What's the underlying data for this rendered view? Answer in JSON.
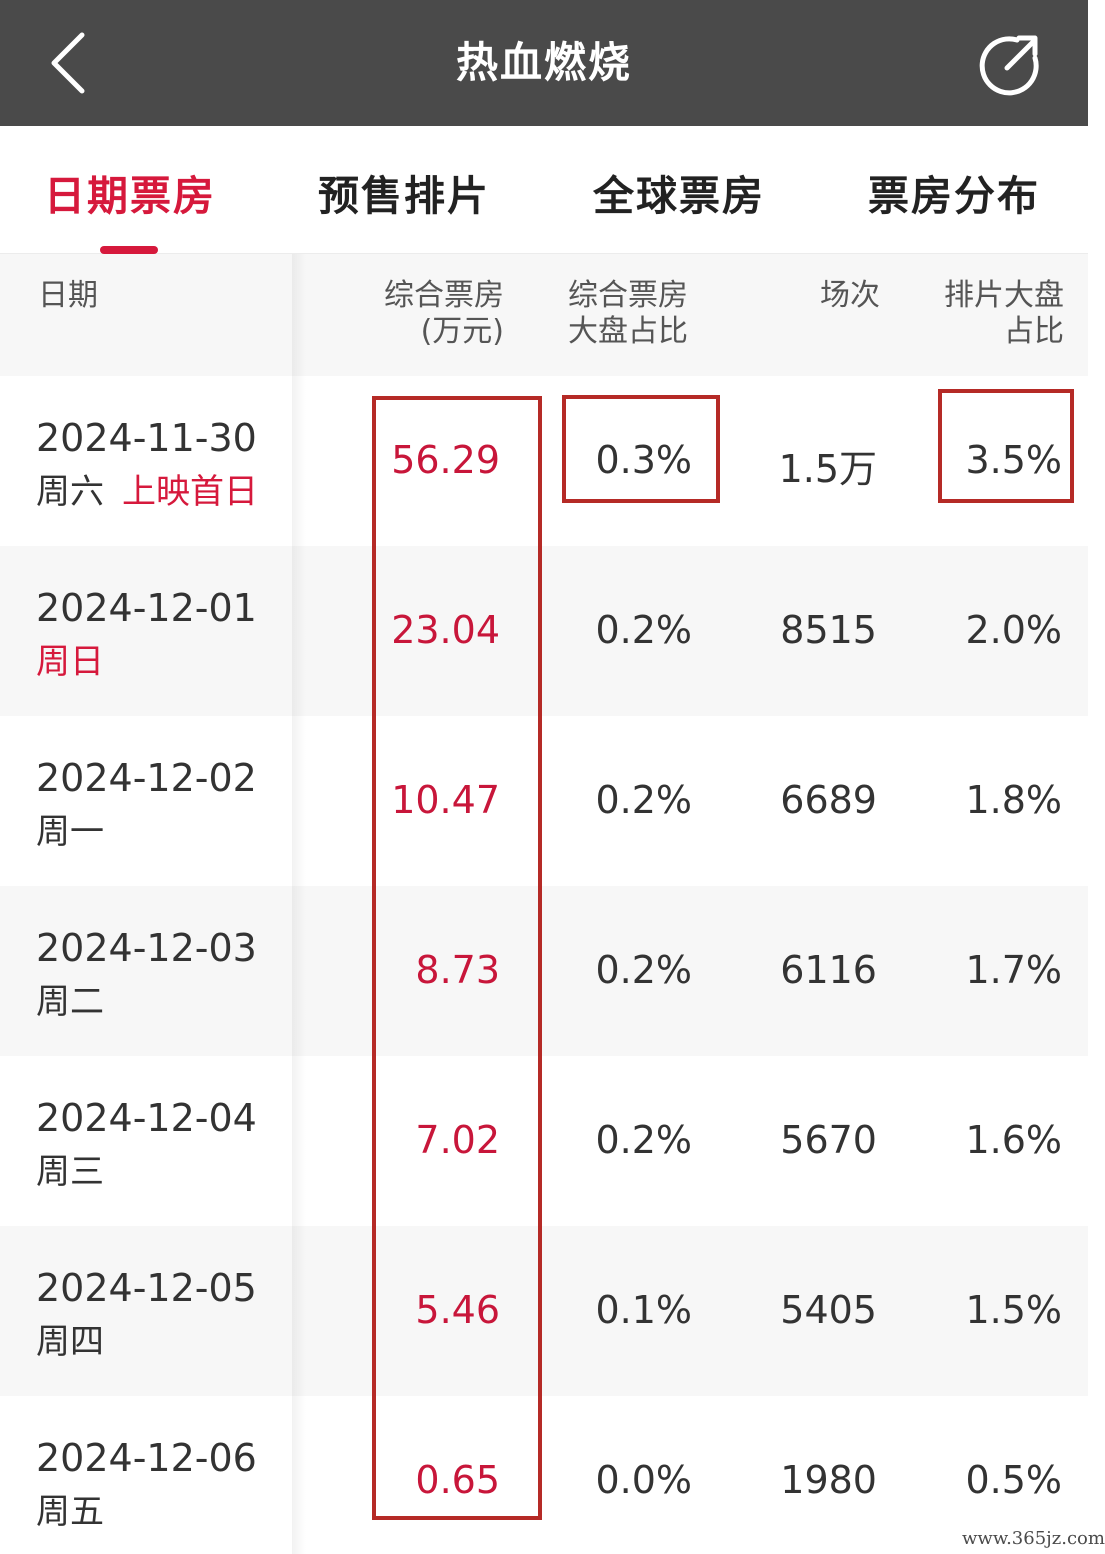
{
  "header": {
    "title": "热血燃烧",
    "back_icon": "chevron-left-icon",
    "share_icon": "share-icon"
  },
  "tabs": [
    {
      "label": "日期票房",
      "active": true
    },
    {
      "label": "预售排片",
      "active": false
    },
    {
      "label": "全球票房",
      "active": false
    },
    {
      "label": "票房分布",
      "active": false
    }
  ],
  "table": {
    "columns": {
      "date": "日期",
      "box_office_1": "综合票房",
      "box_office_2": "(万元)",
      "share_1": "综合票房",
      "share_2": "大盘占比",
      "shows": "场次",
      "sched_1": "排片大盘",
      "sched_2": "占比"
    },
    "rows": [
      {
        "date": "2024-11-30",
        "weekday": "周六",
        "note": "上映首日",
        "box_office": "56.29",
        "share": "0.3%",
        "shows": "1.5万",
        "sched": "3.5%"
      },
      {
        "date": "2024-12-01",
        "weekday": "周日",
        "note": "",
        "box_office": "23.04",
        "share": "0.2%",
        "shows": "8515",
        "sched": "2.0%"
      },
      {
        "date": "2024-12-02",
        "weekday": "周一",
        "note": "",
        "box_office": "10.47",
        "share": "0.2%",
        "shows": "6689",
        "sched": "1.8%"
      },
      {
        "date": "2024-12-03",
        "weekday": "周二",
        "note": "",
        "box_office": "8.73",
        "share": "0.2%",
        "shows": "6116",
        "sched": "1.7%"
      },
      {
        "date": "2024-12-04",
        "weekday": "周三",
        "note": "",
        "box_office": "7.02",
        "share": "0.2%",
        "shows": "5670",
        "sched": "1.6%"
      },
      {
        "date": "2024-12-05",
        "weekday": "周四",
        "note": "",
        "box_office": "5.46",
        "share": "0.1%",
        "shows": "5405",
        "sched": "1.5%"
      },
      {
        "date": "2024-12-06",
        "weekday": "周五",
        "note": "",
        "box_office": "0.65",
        "share": "0.0%",
        "shows": "1980",
        "sched": "0.5%"
      }
    ]
  },
  "watermark": "www.365jz.com",
  "colors": {
    "accent": "#d6193c",
    "header_bg": "#4a4a4a",
    "highlight_border": "#b52a26"
  }
}
